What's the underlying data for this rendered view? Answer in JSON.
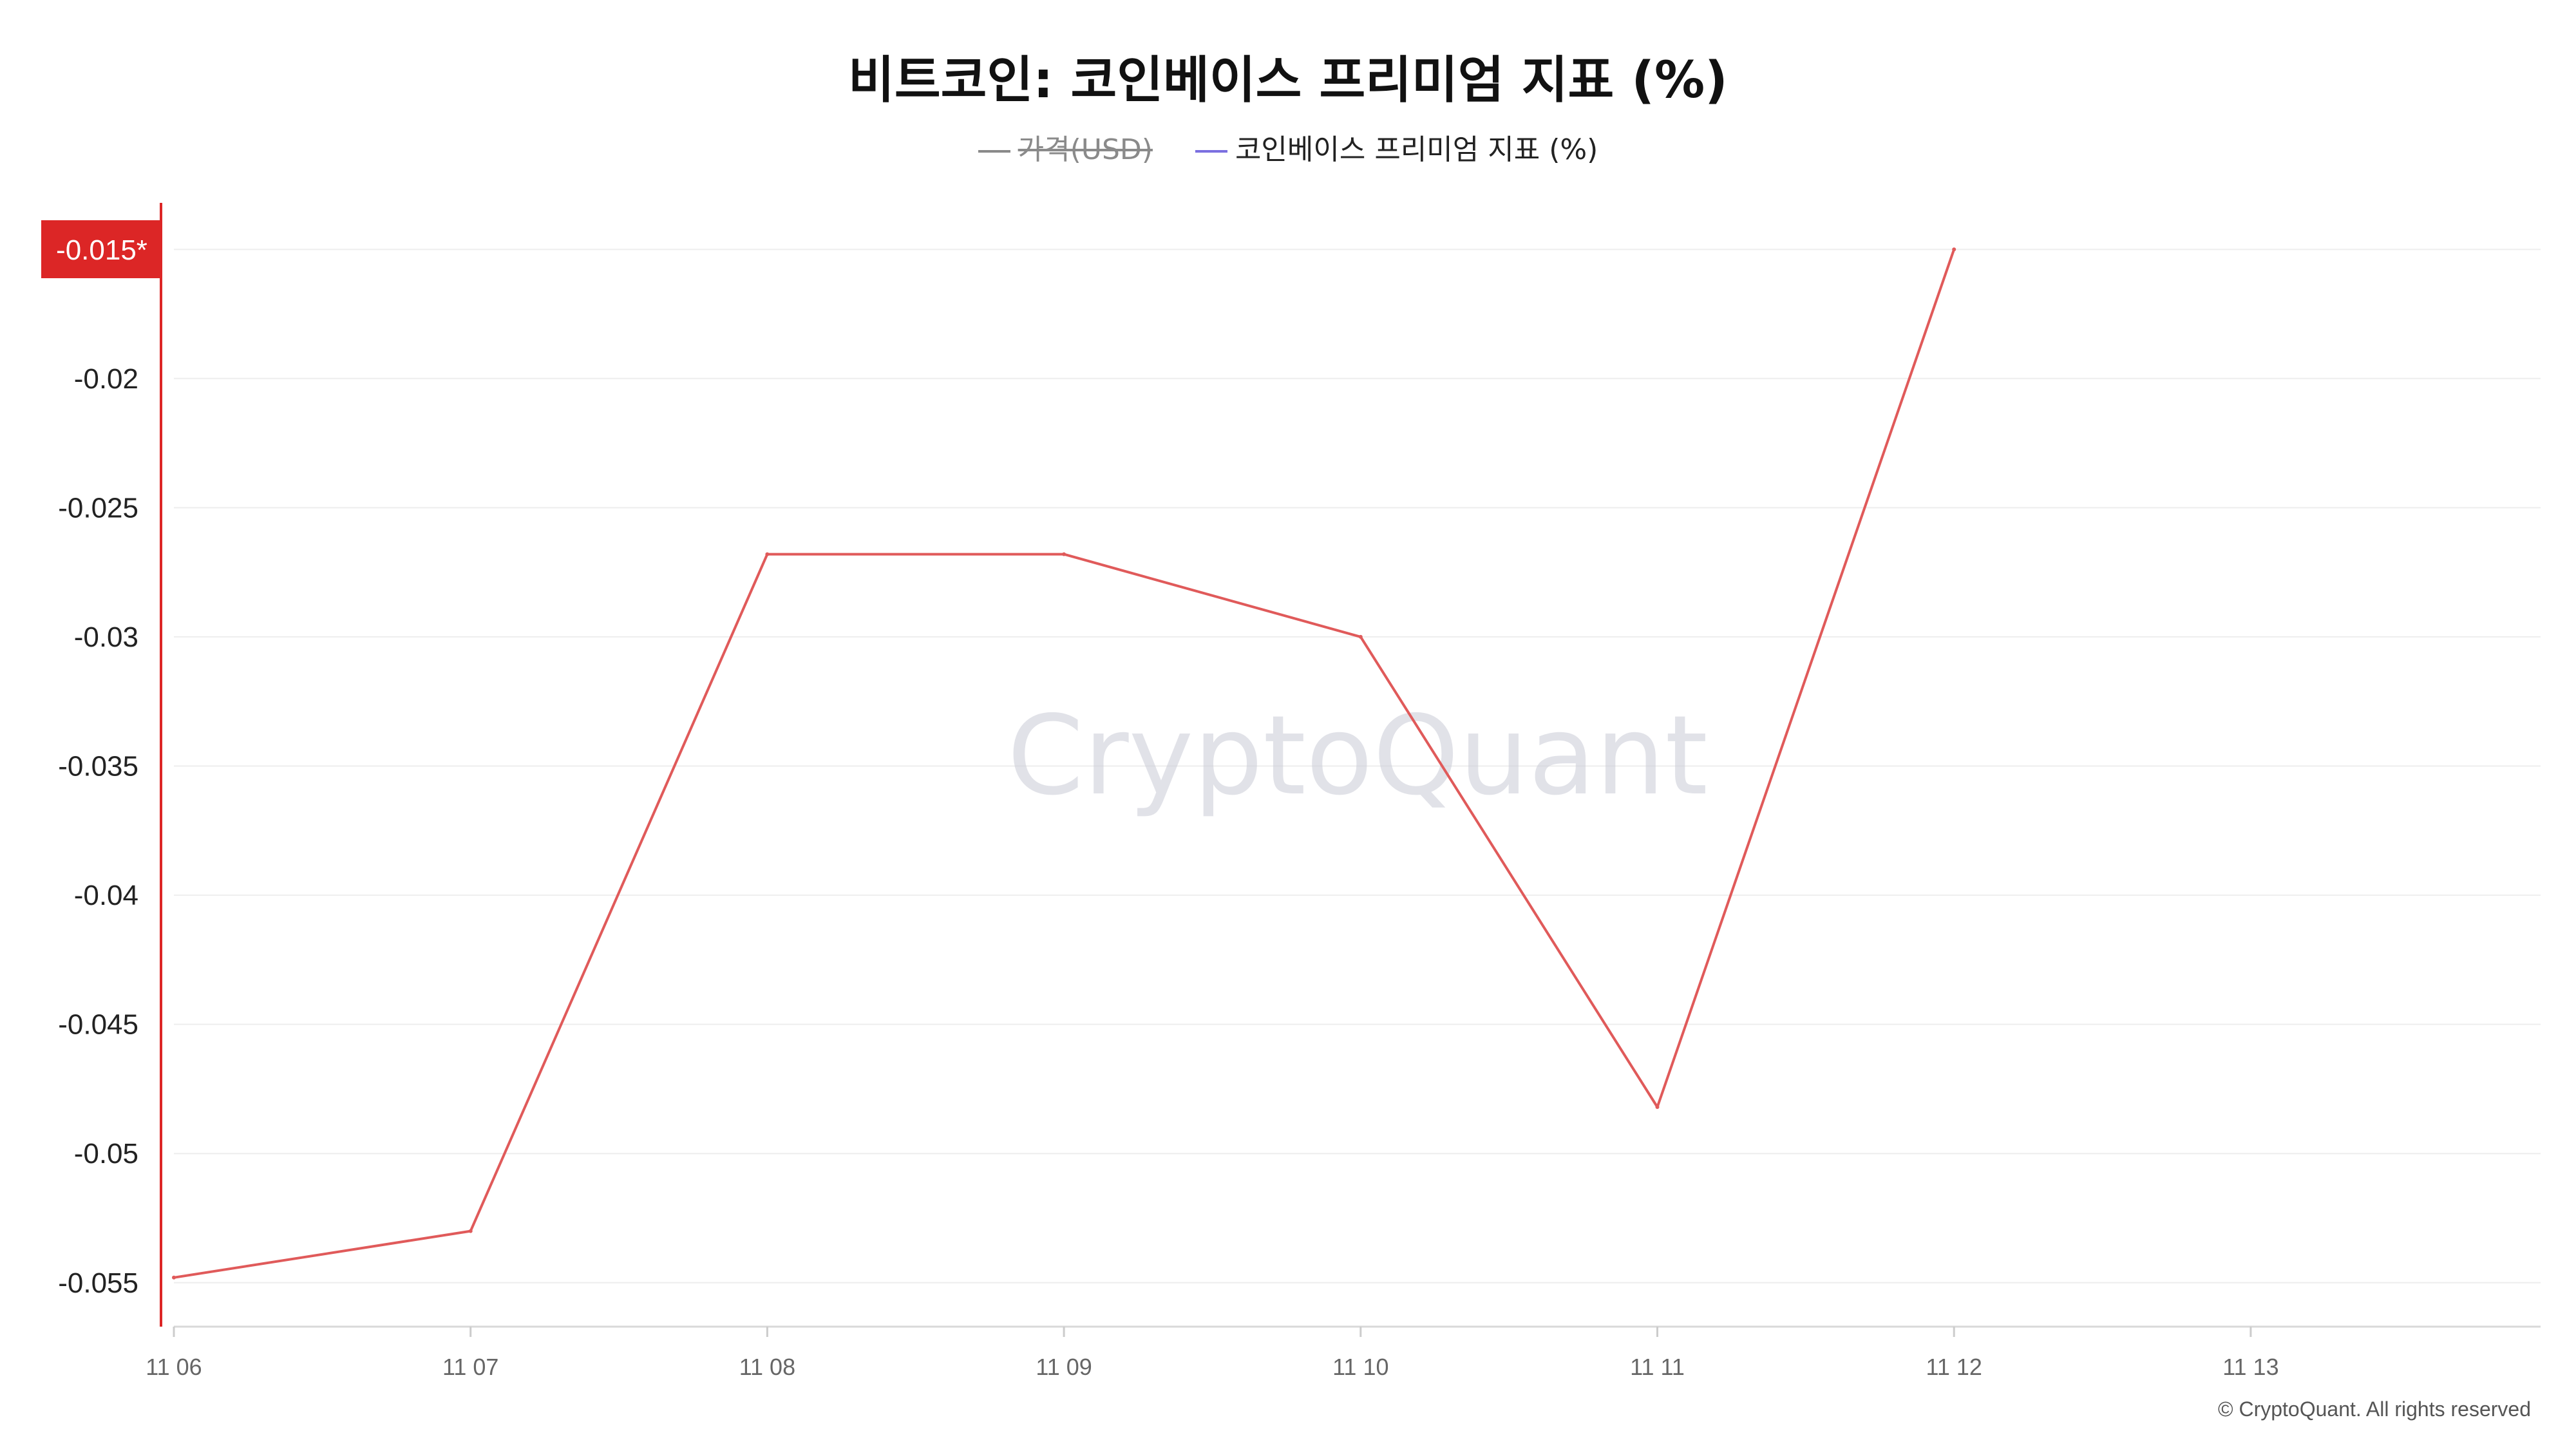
{
  "title": "비트코인: 코인베이스 프리미엄 지표 (%)",
  "legend": [
    {
      "name": "가격(USD)",
      "color": "#8a8a8a",
      "disabled": true
    },
    {
      "name": "코인베이스 프리미엄 지표 (%)",
      "color": "#7b6fe0",
      "disabled": false
    }
  ],
  "watermark": "CryptoQuant",
  "copyright": "© CryptoQuant. All rights reserved",
  "current_value_badge": "-0.015*",
  "colors": {
    "line": "#e05a5a",
    "badge": "#dc2626",
    "axis_marker": "#dc2626",
    "grid": "#eeeeee"
  },
  "chart_data": {
    "type": "line",
    "title": "비트코인: 코인베이스 프리미엄 지표 (%)",
    "xlabel": "",
    "ylabel": "",
    "x_ticks": [
      "11 06",
      "11 07",
      "11 08",
      "11 09",
      "11 10",
      "11 11",
      "11 12",
      "11 13"
    ],
    "y_ticks": [
      "-0.02",
      "-0.025",
      "-0.03",
      "-0.035",
      "-0.04",
      "-0.045",
      "-0.05",
      "-0.055"
    ],
    "ylim": [
      -0.0567,
      -0.0132
    ],
    "grid": true,
    "series": [
      {
        "name": "코인베이스 프리미엄 지표 (%)",
        "x": [
          "11 06",
          "11 07",
          "11 08",
          "11 09",
          "11 10",
          "11 11",
          "11 12"
        ],
        "values": [
          -0.0548,
          -0.053,
          -0.0268,
          -0.0268,
          -0.03,
          -0.0482,
          -0.015
        ]
      }
    ]
  }
}
